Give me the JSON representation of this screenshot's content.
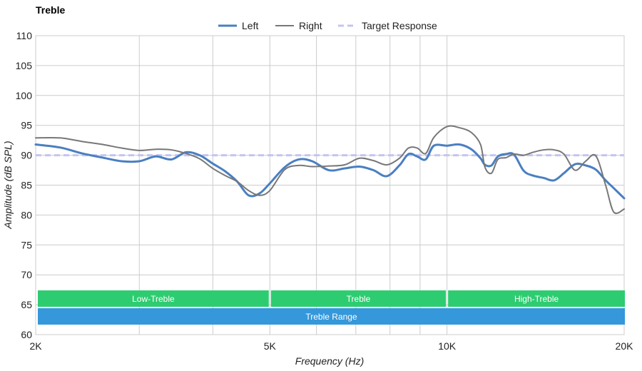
{
  "chart_data": {
    "type": "line",
    "title": "Treble",
    "xlabel": "Frequency (Hz)",
    "ylabel": "Amplitude (dB SPL)",
    "xscale": "log",
    "xlim": [
      2000,
      20000
    ],
    "ylim": [
      60,
      110
    ],
    "y_ticks": [
      60,
      65,
      70,
      75,
      80,
      85,
      90,
      95,
      100,
      105,
      110
    ],
    "x_ticks": [
      {
        "value": 2000,
        "label": "2K"
      },
      {
        "value": 5000,
        "label": "5K"
      },
      {
        "value": 10000,
        "label": "10K"
      },
      {
        "value": 20000,
        "label": "20K"
      }
    ],
    "x_gridlines": [
      3000,
      4000,
      5000,
      6000,
      7000,
      8000,
      9000,
      10000,
      20000
    ],
    "legend": [
      {
        "name": "Left",
        "color": "#4a7fc1",
        "style": "solid"
      },
      {
        "name": "Right",
        "color": "#777777",
        "style": "solid"
      },
      {
        "name": "Target Response",
        "color": "#c4c4f2",
        "style": "dashed"
      }
    ],
    "series": [
      {
        "name": "Left",
        "color": "#4a7fc1",
        "x": [
          2000,
          2200,
          2400,
          2600,
          2800,
          3000,
          3200,
          3400,
          3600,
          3800,
          4000,
          4200,
          4400,
          4600,
          4800,
          5000,
          5300,
          5600,
          5900,
          6300,
          6700,
          7100,
          7500,
          7900,
          8300,
          8600,
          8900,
          9200,
          9500,
          10000,
          10500,
          11000,
          11400,
          11600,
          11900,
          12200,
          12600,
          13000,
          13500,
          14000,
          14600,
          15200,
          15800,
          16500,
          17200,
          17900,
          18600,
          19200,
          20000
        ],
        "values": [
          91.8,
          91.3,
          90.3,
          89.6,
          89.0,
          89.0,
          89.8,
          89.3,
          90.5,
          90.0,
          88.6,
          87.3,
          85.6,
          83.3,
          83.6,
          85.3,
          88.0,
          89.3,
          89.0,
          87.5,
          87.8,
          88.1,
          87.5,
          86.5,
          88.3,
          90.2,
          89.8,
          89.3,
          91.6,
          91.6,
          91.8,
          91.0,
          89.5,
          88.4,
          88.3,
          89.8,
          90.2,
          90.1,
          87.4,
          86.6,
          86.2,
          85.8,
          87.0,
          88.5,
          88.3,
          87.6,
          85.8,
          84.5,
          82.8
        ]
      },
      {
        "name": "Right",
        "color": "#777777",
        "x": [
          2000,
          2200,
          2400,
          2600,
          2800,
          3000,
          3200,
          3400,
          3600,
          3800,
          4000,
          4200,
          4400,
          4600,
          4800,
          5000,
          5300,
          5600,
          5900,
          6300,
          6700,
          7100,
          7500,
          7900,
          8300,
          8600,
          8900,
          9200,
          9500,
          10000,
          10500,
          11000,
          11400,
          11600,
          11900,
          12200,
          12600,
          13000,
          13500,
          14000,
          14600,
          15200,
          15800,
          16500,
          17200,
          17900,
          18600,
          19200,
          20000
        ],
        "values": [
          92.9,
          92.9,
          92.3,
          91.8,
          91.2,
          90.8,
          91.0,
          90.9,
          90.3,
          89.4,
          87.8,
          86.6,
          85.6,
          84.1,
          83.3,
          84.1,
          87.6,
          88.3,
          88.1,
          88.2,
          88.4,
          89.5,
          89.1,
          88.4,
          89.5,
          91.2,
          91.2,
          90.3,
          93.0,
          94.8,
          94.6,
          93.8,
          91.8,
          88.0,
          87.0,
          89.3,
          89.6,
          90.2,
          90.0,
          90.5,
          90.9,
          90.9,
          90.2,
          87.5,
          89.0,
          89.9,
          85.0,
          80.5,
          81.0
        ]
      },
      {
        "name": "Target Response",
        "color": "#c4c4f2",
        "x": [
          2000,
          20000
        ],
        "values": [
          90,
          90
        ]
      }
    ],
    "bands": [
      {
        "label": "Low-Treble",
        "start": 2000,
        "end": 5000,
        "row": 1,
        "color": "#2ecc71"
      },
      {
        "label": "Treble",
        "start": 5000,
        "end": 10000,
        "row": 1,
        "color": "#2ecc71"
      },
      {
        "label": "High-Treble",
        "start": 10000,
        "end": 20000,
        "row": 1,
        "color": "#2ecc71"
      },
      {
        "label": "Treble Range",
        "start": 2000,
        "end": 20000,
        "row": 2,
        "color": "#3498db"
      }
    ]
  }
}
